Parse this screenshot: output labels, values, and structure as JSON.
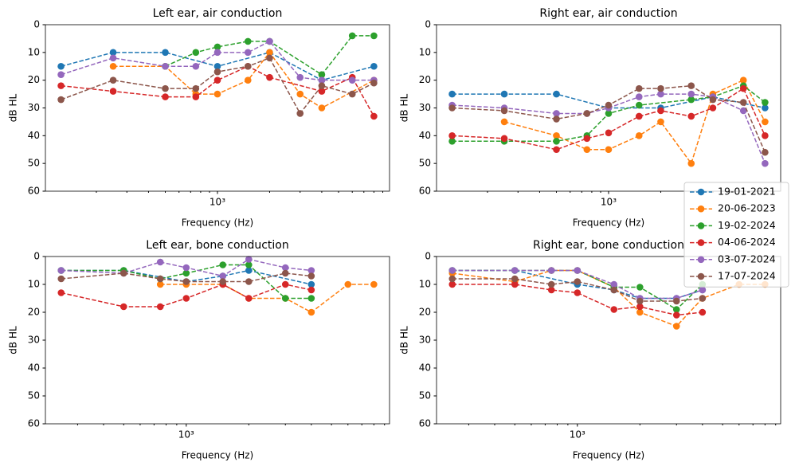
{
  "legend": [
    {
      "name": "19-01-2021",
      "color": "#1f77b4"
    },
    {
      "name": "20-06-2023",
      "color": "#ff7f0e"
    },
    {
      "name": "19-02-2024",
      "color": "#2ca02c"
    },
    {
      "name": "04-06-2024",
      "color": "#d62728"
    },
    {
      "name": "03-07-2024",
      "color": "#9467bd"
    },
    {
      "name": "17-07-2024",
      "color": "#8c564b"
    }
  ],
  "chart_data": [
    {
      "type": "line",
      "title": "Left ear, air conduction",
      "xlabel": "Frequency (Hz)",
      "ylabel": "dB HL",
      "xscale": "log",
      "xlim": [
        101.6,
        9846
      ],
      "xticks": [
        {
          "value": 1000,
          "label": "10³"
        }
      ],
      "xminorticks": [
        200,
        300,
        400,
        500,
        600,
        700,
        800,
        900,
        2000,
        3000,
        4000,
        5000,
        6000,
        7000,
        8000,
        9000
      ],
      "ylim": [
        60,
        0
      ],
      "yticks": [
        0,
        10,
        20,
        30,
        40,
        50,
        60
      ],
      "series": [
        {
          "color": "#1f77b4",
          "x": [
            125,
            250,
            500,
            1000,
            2000,
            4000,
            8000
          ],
          "values": [
            15,
            10,
            10,
            15,
            10,
            20,
            15
          ]
        },
        {
          "color": "#ff7f0e",
          "x": [
            250,
            500,
            750,
            1000,
            1500,
            2000,
            3000,
            4000,
            8000
          ],
          "values": [
            15,
            15,
            25,
            25,
            20,
            10,
            25,
            30,
            20
          ]
        },
        {
          "color": "#2ca02c",
          "x": [
            500,
            750,
            1000,
            1500,
            2000,
            4000,
            6000,
            8000
          ],
          "values": [
            15,
            10,
            8,
            6,
            6,
            18,
            4,
            4
          ]
        },
        {
          "color": "#d62728",
          "x": [
            125,
            250,
            500,
            750,
            1000,
            1500,
            2000,
            4000,
            6000,
            8000
          ],
          "values": [
            22,
            24,
            26,
            26,
            20,
            15,
            19,
            24,
            19,
            33
          ]
        },
        {
          "color": "#9467bd",
          "x": [
            125,
            250,
            500,
            750,
            1000,
            1500,
            2000,
            3000,
            4000,
            6000,
            8000
          ],
          "values": [
            18,
            12,
            15,
            15,
            10,
            10,
            6,
            19,
            20,
            20,
            20
          ]
        },
        {
          "color": "#8c564b",
          "x": [
            125,
            250,
            500,
            750,
            1000,
            1500,
            2000,
            3000,
            4000,
            6000,
            8000
          ],
          "values": [
            27,
            20,
            23,
            23,
            17,
            15,
            12,
            32,
            22,
            25,
            21
          ]
        }
      ]
    },
    {
      "type": "line",
      "title": "Right ear, air conduction",
      "xlabel": "Frequency (Hz)",
      "ylabel": "dB HL",
      "xscale": "log",
      "xlim": [
        101.6,
        9846
      ],
      "xticks": [
        {
          "value": 1000,
          "label": "10³"
        }
      ],
      "xminorticks": [
        200,
        300,
        400,
        500,
        600,
        700,
        800,
        900,
        2000,
        3000,
        4000,
        5000,
        6000,
        7000,
        8000,
        9000
      ],
      "ylim": [
        60,
        0
      ],
      "yticks": [
        0,
        10,
        20,
        30,
        40,
        50,
        60
      ],
      "series": [
        {
          "color": "#1f77b4",
          "x": [
            125,
            250,
            500,
            1000,
            2000,
            4000,
            8000
          ],
          "values": [
            25,
            25,
            25,
            30,
            30,
            26,
            30
          ]
        },
        {
          "color": "#ff7f0e",
          "x": [
            250,
            500,
            750,
            1000,
            1500,
            2000,
            3000,
            4000,
            6000,
            8000
          ],
          "values": [
            35,
            40,
            45,
            45,
            40,
            35,
            50,
            25,
            20,
            35
          ]
        },
        {
          "color": "#2ca02c",
          "x": [
            125,
            250,
            500,
            750,
            1000,
            1500,
            3000,
            4000,
            6000,
            8000
          ],
          "values": [
            42,
            42,
            42,
            40,
            32,
            29,
            27,
            26,
            22,
            28
          ]
        },
        {
          "color": "#d62728",
          "x": [
            125,
            250,
            500,
            750,
            1000,
            1500,
            2000,
            3000,
            4000,
            6000,
            8000
          ],
          "values": [
            40,
            41,
            45,
            41,
            39,
            33,
            31,
            33,
            30,
            23,
            40
          ]
        },
        {
          "color": "#9467bd",
          "x": [
            125,
            250,
            500,
            750,
            1000,
            1500,
            2000,
            3000,
            4000,
            6000,
            8000
          ],
          "values": [
            29,
            30,
            32,
            32,
            30,
            26,
            25,
            25,
            26,
            31,
            50
          ]
        },
        {
          "color": "#8c564b",
          "x": [
            125,
            250,
            500,
            750,
            1000,
            1500,
            2000,
            3000,
            4000,
            6000,
            8000
          ],
          "values": [
            30,
            31,
            34,
            32,
            29,
            23,
            23,
            22,
            27,
            28,
            46
          ]
        }
      ]
    },
    {
      "type": "line",
      "title": "Left ear, bone conduction",
      "xlabel": "Frequency (Hz)",
      "ylabel": "dB HL",
      "xscale": "log",
      "xlim": [
        210,
        9514
      ],
      "xticks": [
        {
          "value": 1000,
          "label": "10³"
        }
      ],
      "xminorticks": [
        300,
        400,
        500,
        600,
        700,
        800,
        900,
        2000,
        3000,
        4000,
        5000,
        6000,
        7000,
        8000,
        9000
      ],
      "ylim": [
        60,
        0
      ],
      "yticks": [
        0,
        10,
        20,
        30,
        40,
        50,
        60
      ],
      "series": [
        {
          "color": "#1f77b4",
          "x": [
            250,
            500,
            1000,
            1500,
            2000,
            4000
          ],
          "values": [
            5,
            5,
            9,
            7,
            5,
            10
          ]
        },
        {
          "color": "#ff7f0e",
          "x": [
            750,
            1000,
            1500,
            2000,
            3000,
            4000,
            6000,
            8000
          ],
          "values": [
            10,
            10,
            10,
            15,
            15,
            20,
            10,
            10
          ]
        },
        {
          "color": "#2ca02c",
          "x": [
            250,
            500,
            750,
            1000,
            1500,
            2000,
            3000,
            4000
          ],
          "values": [
            5,
            5,
            8,
            6,
            3,
            3,
            15,
            15
          ]
        },
        {
          "color": "#d62728",
          "x": [
            250,
            500,
            750,
            1000,
            1500,
            2000,
            3000,
            4000
          ],
          "values": [
            13,
            18,
            18,
            15,
            10,
            15,
            10,
            12
          ]
        },
        {
          "color": "#9467bd",
          "x": [
            250,
            500,
            750,
            1000,
            1500,
            2000,
            3000,
            4000
          ],
          "values": [
            5,
            6,
            2,
            4,
            7,
            1,
            4,
            5
          ]
        },
        {
          "color": "#8c564b",
          "x": [
            250,
            500,
            750,
            1000,
            1500,
            2000,
            3000,
            4000
          ],
          "values": [
            8,
            6,
            8,
            9,
            9,
            9,
            6,
            7
          ]
        }
      ]
    },
    {
      "type": "line",
      "title": "Right ear, bone conduction",
      "xlabel": "Frequency (Hz)",
      "ylabel": "dB HL",
      "xscale": "log",
      "xlim": [
        210,
        9514
      ],
      "xticks": [
        {
          "value": 1000,
          "label": "10³"
        }
      ],
      "xminorticks": [
        300,
        400,
        500,
        600,
        700,
        800,
        900,
        2000,
        3000,
        4000,
        5000,
        6000,
        7000,
        8000,
        9000
      ],
      "ylim": [
        60,
        0
      ],
      "yticks": [
        0,
        10,
        20,
        30,
        40,
        50,
        60
      ],
      "series": [
        {
          "color": "#1f77b4",
          "x": [
            250,
            500,
            1000,
            1500,
            2000,
            3000,
            4000
          ],
          "values": [
            5,
            5,
            10,
            12,
            15,
            15,
            12
          ]
        },
        {
          "color": "#ff7f0e",
          "x": [
            250,
            500,
            750,
            1000,
            1500,
            2000,
            3000,
            4000,
            6000,
            8000
          ],
          "values": [
            6,
            9,
            5,
            5,
            11,
            20,
            25,
            15,
            10,
            10
          ]
        },
        {
          "color": "#2ca02c",
          "x": [
            250,
            500,
            750,
            1000,
            1500,
            2000,
            3000,
            4000
          ],
          "values": [
            5,
            5,
            5,
            5,
            11,
            11,
            19,
            10
          ]
        },
        {
          "color": "#d62728",
          "x": [
            250,
            500,
            750,
            1000,
            1500,
            2000,
            3000,
            4000
          ],
          "values": [
            10,
            10,
            12,
            13,
            19,
            18,
            21,
            20
          ]
        },
        {
          "color": "#9467bd",
          "x": [
            250,
            500,
            750,
            1000,
            1500,
            2000,
            3000,
            4000
          ],
          "values": [
            5,
            5,
            5,
            5,
            10,
            15,
            15,
            12
          ]
        },
        {
          "color": "#8c564b",
          "x": [
            250,
            500,
            750,
            1000,
            1500,
            2000,
            3000,
            4000
          ],
          "values": [
            8,
            8,
            10,
            9,
            12,
            16,
            16,
            15
          ]
        }
      ]
    }
  ]
}
